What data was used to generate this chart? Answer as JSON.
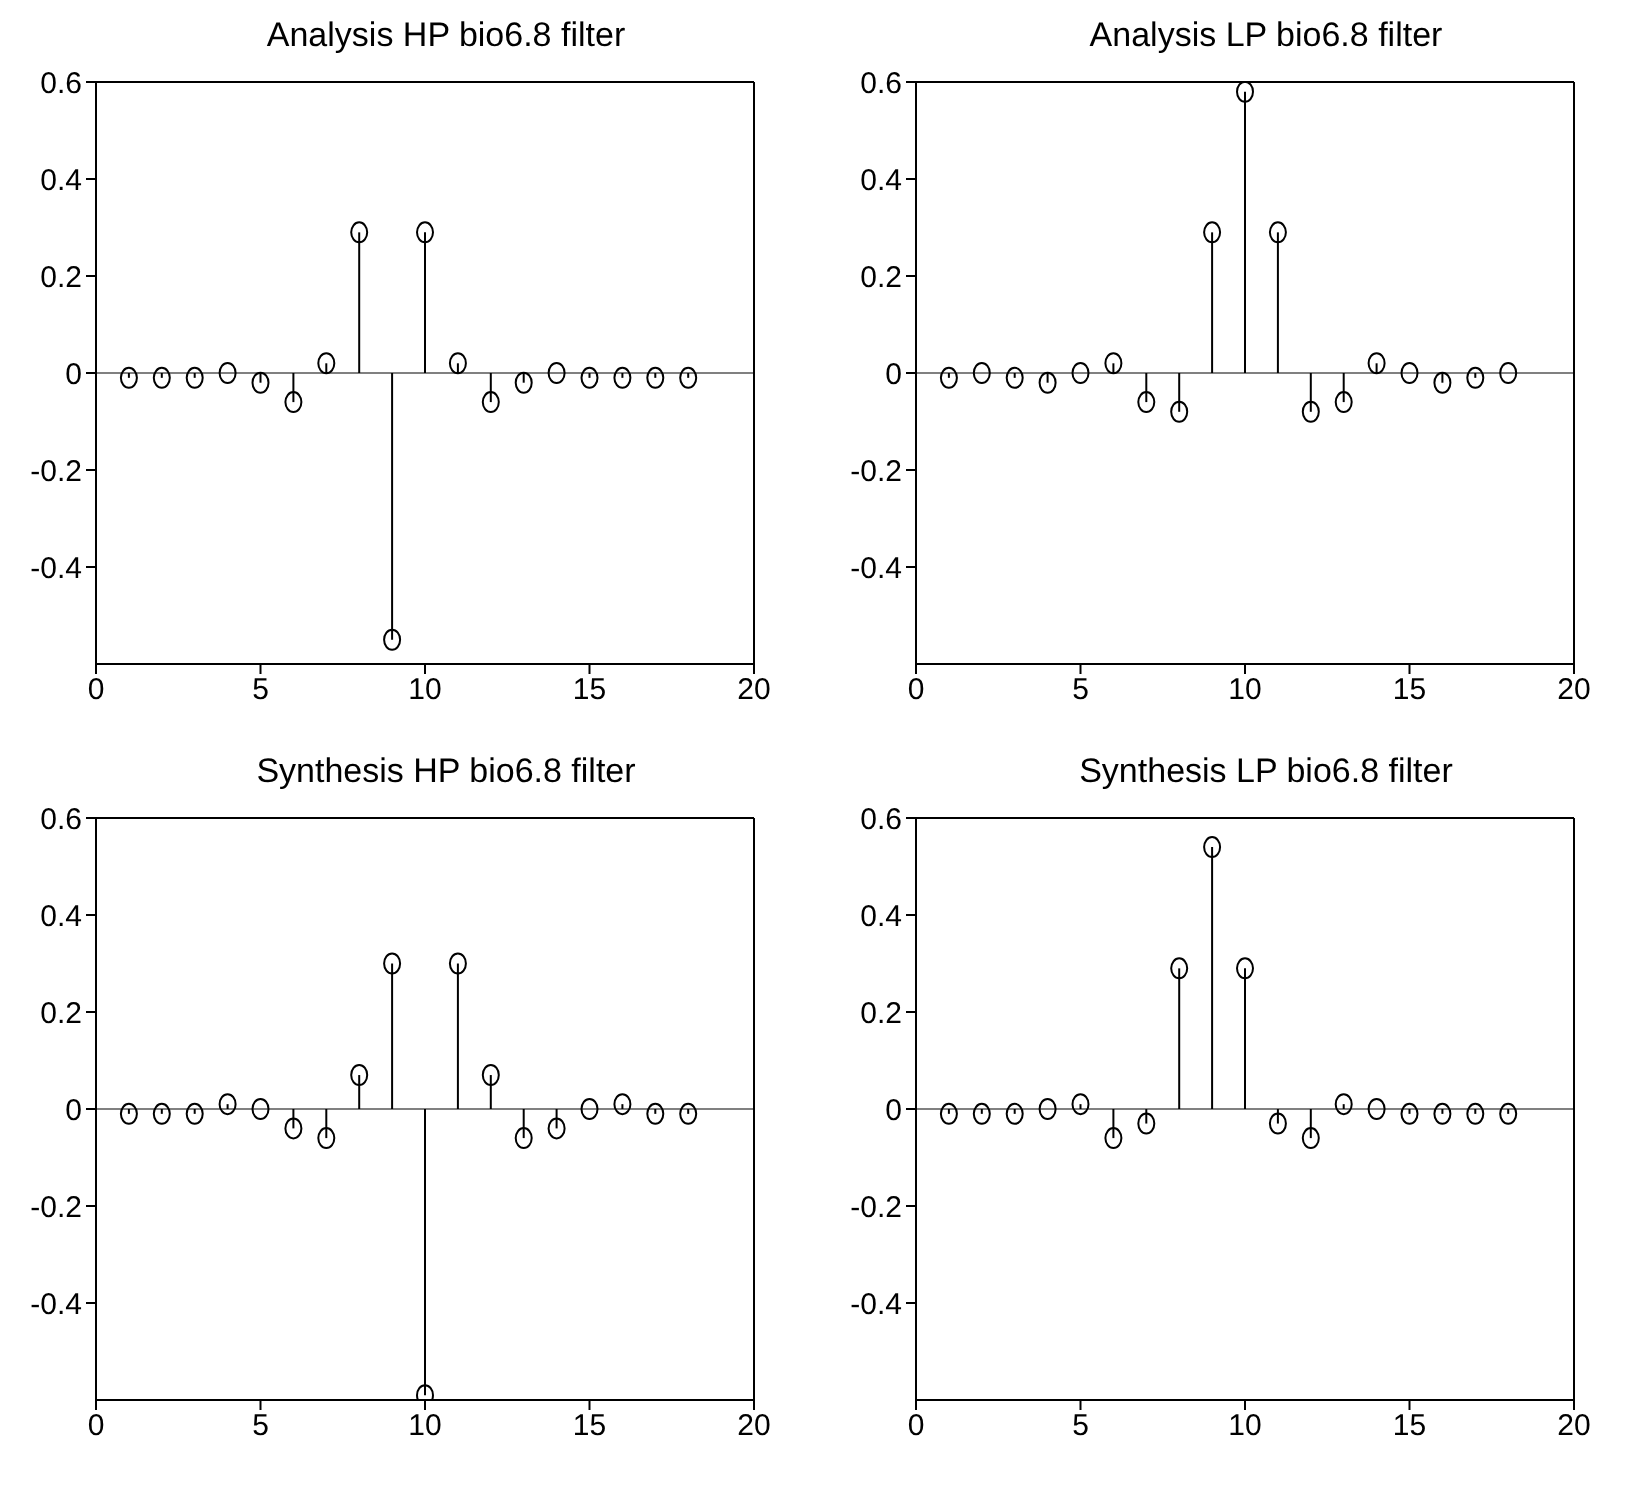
{
  "chart_data": [
    {
      "type": "lollipop",
      "title": "Analysis HP bio6.8 filter",
      "x": [
        1,
        2,
        3,
        4,
        5,
        6,
        7,
        8,
        9,
        10,
        11,
        12,
        13,
        14,
        15,
        16,
        17,
        18
      ],
      "values": [
        -0.01,
        -0.01,
        -0.01,
        0,
        -0.02,
        -0.06,
        0.02,
        0.29,
        -0.55,
        0.29,
        0.02,
        -0.06,
        -0.02,
        0,
        -0.01,
        -0.01,
        -0.01,
        -0.01
      ],
      "color": "#000000",
      "marker": "circle",
      "xlim": [
        0,
        20
      ],
      "xticks": [
        0,
        5,
        10,
        15,
        20
      ],
      "ylim": [
        -0.6,
        0.6
      ],
      "yticks": [
        -0.4,
        -0.2,
        0,
        0.2,
        0.4,
        0.6
      ],
      "ref_lines": [
        {
          "axis": "y",
          "value": 0,
          "color": "#808080"
        }
      ],
      "grid": false,
      "legend": false
    },
    {
      "type": "lollipop",
      "title": "Analysis LP bio6.8 filter",
      "x": [
        1,
        2,
        3,
        4,
        5,
        6,
        7,
        8,
        9,
        10,
        11,
        12,
        13,
        14,
        15,
        16,
        17,
        18
      ],
      "values": [
        -0.01,
        0,
        -0.01,
        -0.02,
        0,
        0.02,
        -0.06,
        -0.08,
        0.29,
        0.58,
        0.29,
        -0.08,
        -0.06,
        0.02,
        0,
        -0.02,
        -0.01,
        0
      ],
      "color": "#000000",
      "marker": "circle",
      "xlim": [
        0,
        20
      ],
      "xticks": [
        0,
        5,
        10,
        15,
        20
      ],
      "ylim": [
        -0.6,
        0.6
      ],
      "yticks": [
        -0.4,
        -0.2,
        0,
        0.2,
        0.4,
        0.6
      ],
      "ref_lines": [
        {
          "axis": "y",
          "value": 0,
          "color": "#808080"
        }
      ],
      "grid": false,
      "legend": false
    },
    {
      "type": "lollipop",
      "title": "Synthesis HP bio6.8 filter",
      "x": [
        1,
        2,
        3,
        4,
        5,
        6,
        7,
        8,
        9,
        10,
        11,
        12,
        13,
        14,
        15,
        16,
        17,
        18
      ],
      "values": [
        -0.01,
        -0.01,
        -0.01,
        0.01,
        0,
        -0.04,
        -0.06,
        0.07,
        0.3,
        -0.59,
        0.3,
        0.07,
        -0.06,
        -0.04,
        0,
        0.01,
        -0.01,
        -0.01
      ],
      "color": "#000000",
      "marker": "circle",
      "xlim": [
        0,
        20
      ],
      "xticks": [
        0,
        5,
        10,
        15,
        20
      ],
      "ylim": [
        -0.6,
        0.6
      ],
      "yticks": [
        -0.4,
        -0.2,
        0,
        0.2,
        0.4,
        0.6
      ],
      "ref_lines": [
        {
          "axis": "y",
          "value": 0,
          "color": "#808080"
        }
      ],
      "grid": false,
      "legend": false
    },
    {
      "type": "lollipop",
      "title": "Synthesis LP bio6.8 filter",
      "x": [
        1,
        2,
        3,
        4,
        5,
        6,
        7,
        8,
        9,
        10,
        11,
        12,
        13,
        14,
        15,
        16,
        17,
        18
      ],
      "values": [
        -0.01,
        -0.01,
        -0.01,
        0,
        0.01,
        -0.06,
        -0.03,
        0.29,
        0.54,
        0.29,
        -0.03,
        -0.06,
        0.01,
        0,
        -0.01,
        -0.01,
        -0.01,
        -0.01
      ],
      "color": "#000000",
      "marker": "circle",
      "xlim": [
        0,
        20
      ],
      "xticks": [
        0,
        5,
        10,
        15,
        20
      ],
      "ylim": [
        -0.6,
        0.6
      ],
      "yticks": [
        -0.4,
        -0.2,
        0,
        0.2,
        0.4,
        0.6
      ],
      "ref_lines": [
        {
          "axis": "y",
          "value": 0,
          "color": "#808080"
        }
      ],
      "grid": false,
      "legend": false
    }
  ]
}
